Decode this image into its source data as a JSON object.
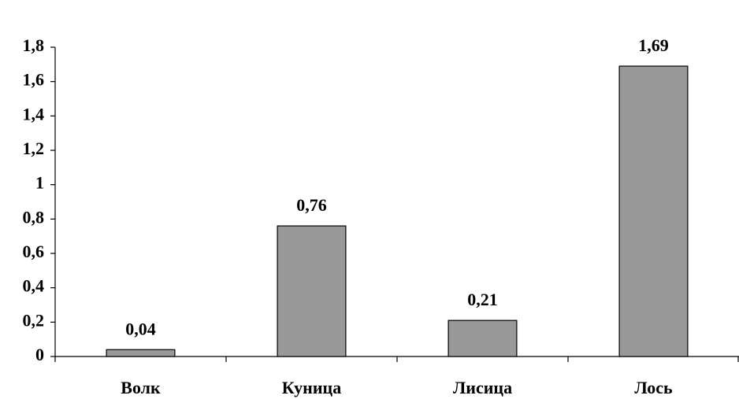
{
  "chart_data": {
    "type": "bar",
    "categories": [
      "Волк",
      "Куница",
      "Лисица",
      "Лось"
    ],
    "values": [
      0.04,
      0.76,
      0.21,
      1.69
    ],
    "value_labels": [
      "0,04",
      "0,76",
      "0,21",
      "1,69"
    ],
    "color": "#999999",
    "ylim": [
      0,
      1.8
    ],
    "yticks": [
      0,
      {
        "value": 0.2,
        "label": "0,2"
      },
      {
        "value": 0.4,
        "label": "0,4"
      },
      {
        "value": 0.6,
        "label": "0,6"
      },
      {
        "value": 0.8,
        "label": "0,8"
      },
      1,
      {
        "value": 1.2,
        "label": "1,2"
      },
      {
        "value": 1.4,
        "label": "1,4"
      },
      {
        "value": 1.6,
        "label": "1,6"
      },
      {
        "value": 1.8,
        "label": "1,8"
      }
    ],
    "grid": false
  }
}
